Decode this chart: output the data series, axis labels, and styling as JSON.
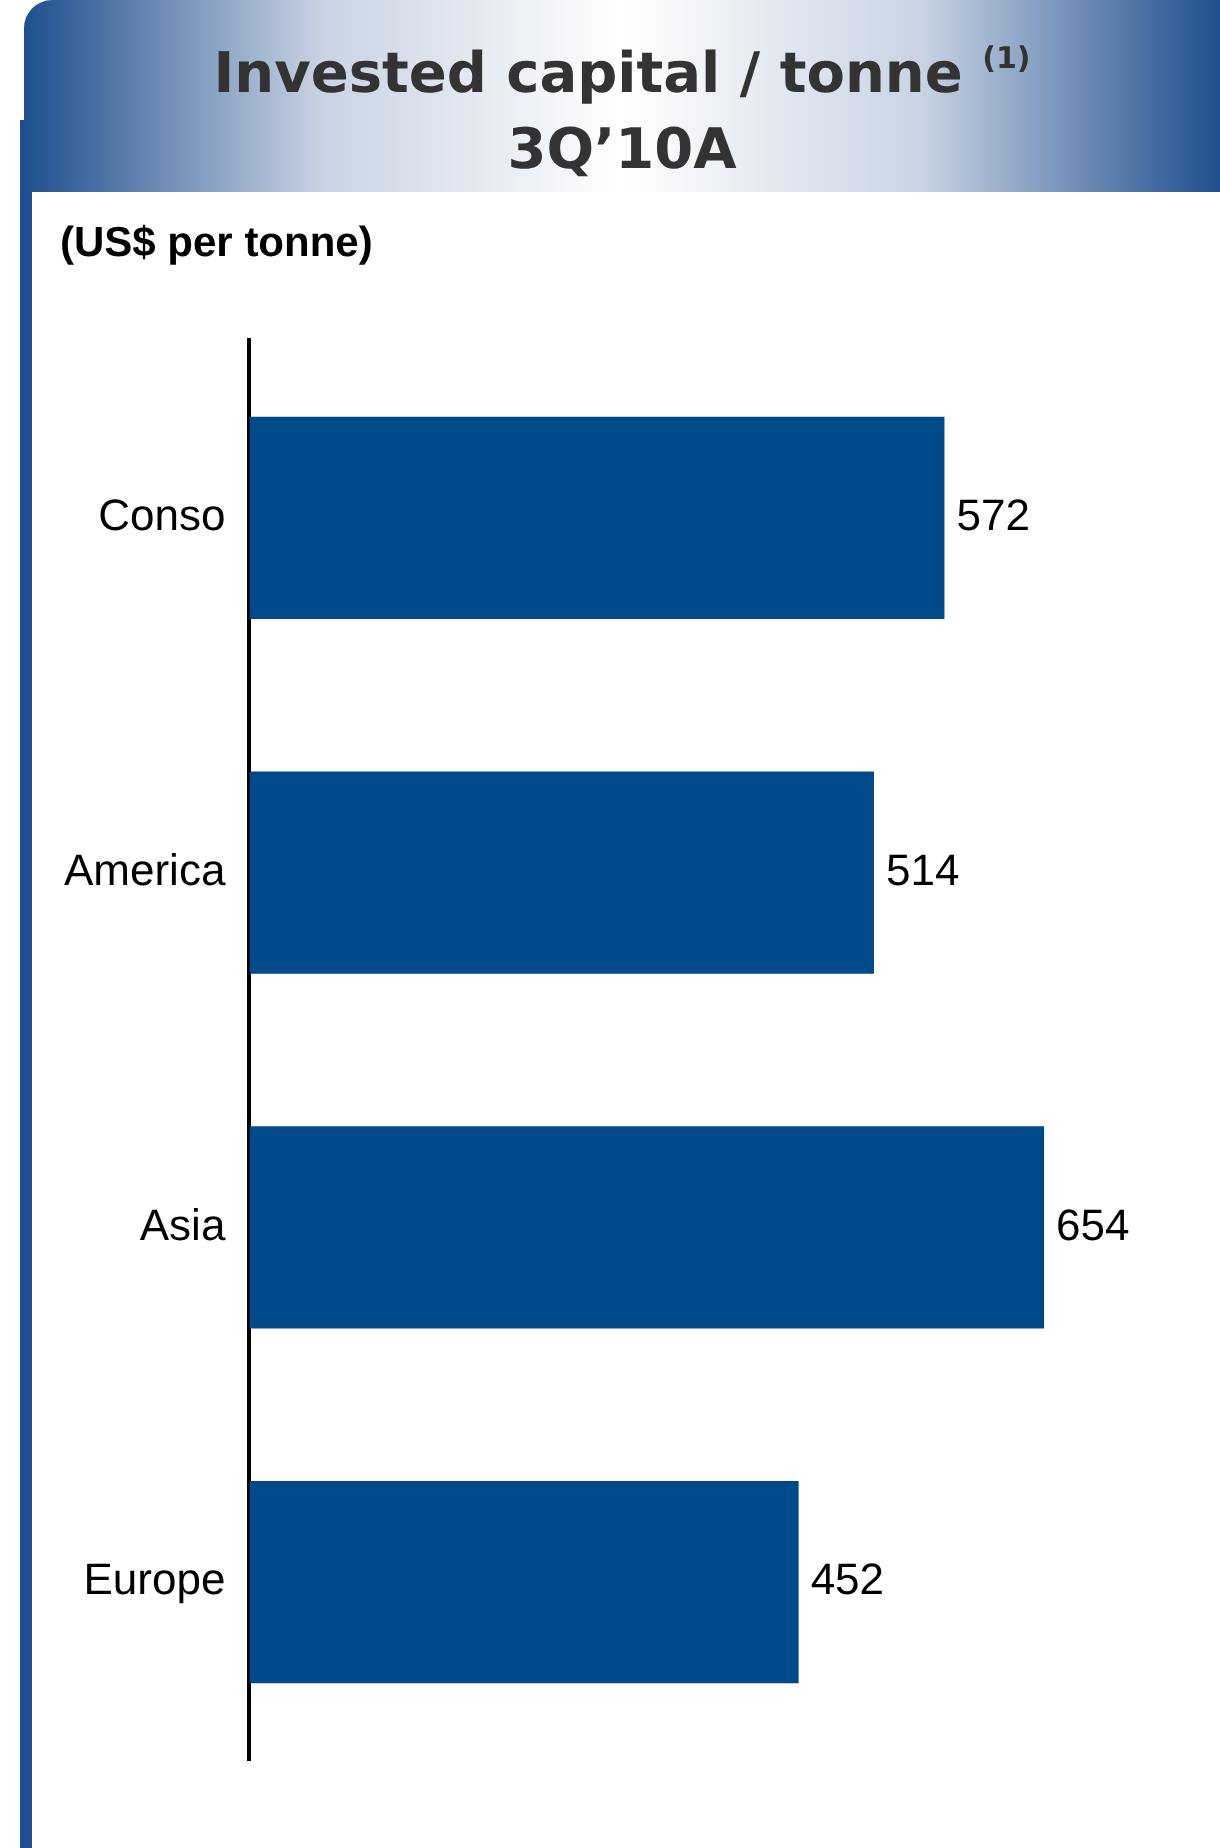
{
  "chart_data": {
    "type": "bar",
    "orientation": "horizontal",
    "title": "Invested capital / tonne $^{(1)}$",
    "subtitle": "3Q’10A",
    "ylabel": "(US$ per tonne)",
    "categories": [
      "Conso",
      "America",
      "Asia",
      "Europe"
    ],
    "values": [
      572,
      514,
      654,
      452
    ],
    "color": "#004a8a",
    "data_labels": true
  }
}
